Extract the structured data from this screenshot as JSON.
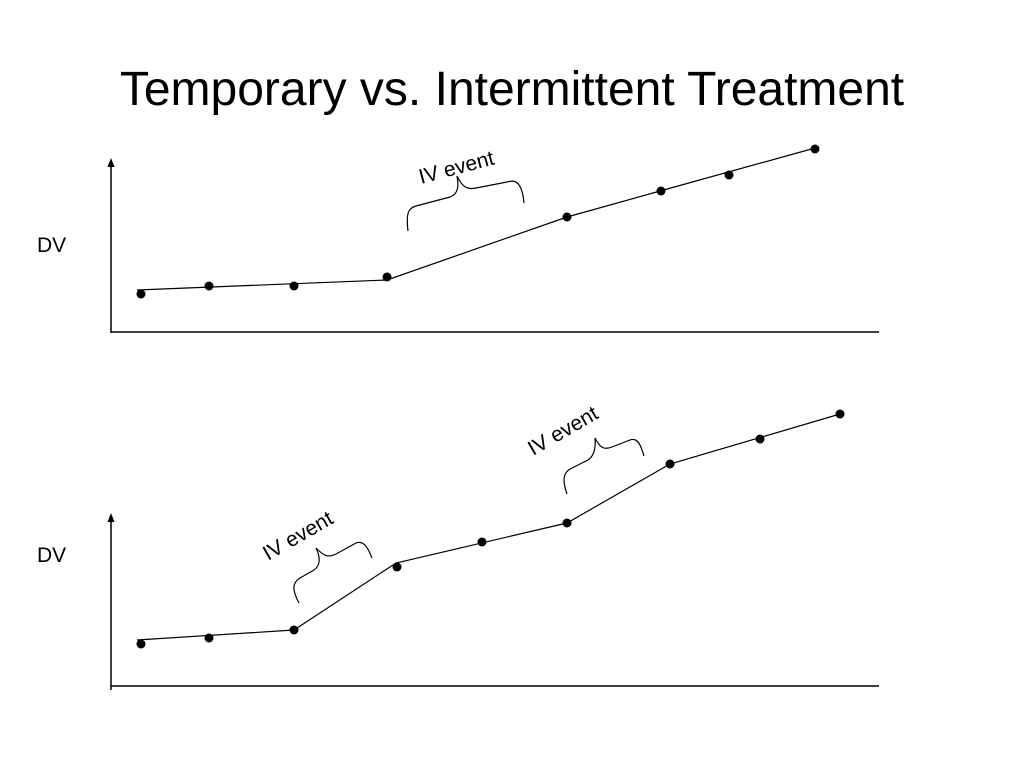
{
  "slide": {
    "title": "Temporary vs. Intermittent Treatment"
  },
  "panels": [
    {
      "y_label": "DV",
      "event_label": "IV event",
      "events": 1
    },
    {
      "y_label": "DV",
      "event_label": "IV event",
      "events": 2
    }
  ]
}
